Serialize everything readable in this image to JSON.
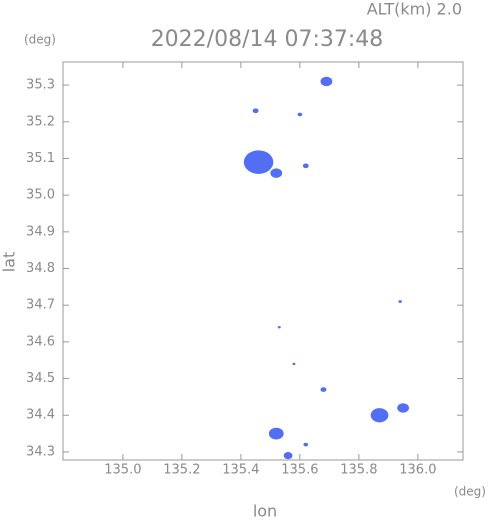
{
  "chart_data": {
    "type": "scatter",
    "altitude_label": "ALT(km) 2.0",
    "title": "2022/08/14 07:37:48",
    "y_unit": "(deg)",
    "x_unit": "(deg)",
    "x_label": "lon",
    "y_label": "lat",
    "xlim": [
      134.797,
      136.153
    ],
    "ylim": [
      34.278,
      35.363
    ],
    "xticks": [
      {
        "value": 135.0,
        "label": "135.0"
      },
      135.2,
      135.4,
      135.6,
      135.8,
      {
        "value": 136.0,
        "label": "136.0"
      }
    ],
    "yticks": [
      34.3,
      34.4,
      34.5,
      34.6,
      34.7,
      34.8,
      34.9,
      {
        "value": 35.0,
        "label": "35.0"
      },
      35.1,
      35.2,
      35.3
    ],
    "series": [
      {
        "color": "#3f5ff2",
        "x": [
          135.69,
          135.45,
          135.6,
          135.46,
          135.52,
          135.62,
          135.94,
          135.53,
          135.58,
          135.68,
          135.87,
          135.95,
          135.52,
          135.62,
          135.56
        ],
        "values": [
          35.31,
          35.23,
          35.22,
          35.09,
          35.06,
          35.08,
          34.71,
          34.64,
          34.54,
          34.47,
          34.4,
          34.42,
          34.35,
          34.32,
          34.29
        ],
        "sizes": [
          0.02,
          0.01,
          0.008,
          0.05,
          0.02,
          0.01,
          0.006,
          0.004,
          0.005,
          0.01,
          0.03,
          0.02,
          0.025,
          0.008,
          0.015
        ]
      }
    ]
  }
}
